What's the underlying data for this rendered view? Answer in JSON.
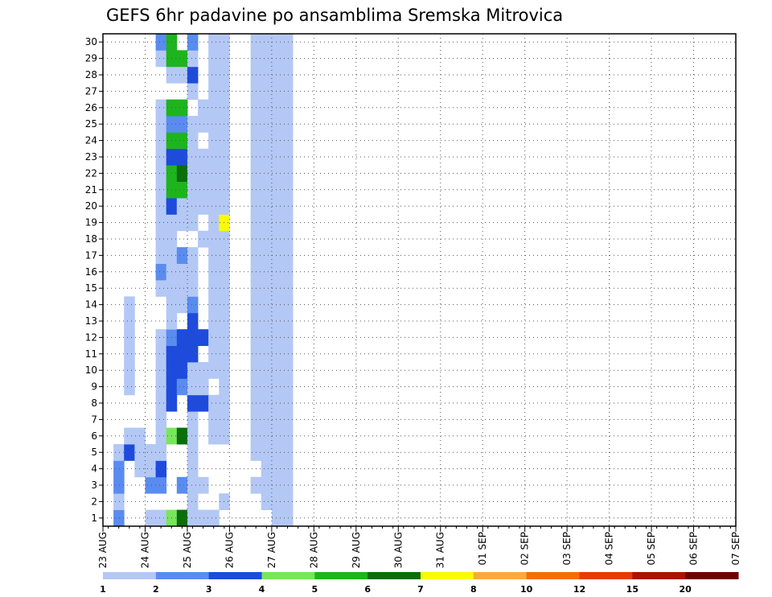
{
  "chart_data": {
    "type": "heatmap",
    "title": "GEFS 6hr padavine po ansamblima Sremska Mitrovica",
    "x_tick_labels": [
      "23 AUG",
      "24 AUG",
      "25 AUG",
      "26 AUG",
      "27 AUG",
      "28 AUG",
      "29 AUG",
      "30 AUG",
      "31 AUG",
      "01 SEP",
      "02 SEP",
      "03 SEP",
      "04 SEP",
      "05 SEP",
      "06 SEP",
      "07 SEP"
    ],
    "x_step": "6h",
    "steps_per_day": 4,
    "ylim": [
      0,
      30
    ],
    "y_ticks": [
      1,
      2,
      3,
      4,
      5,
      6,
      7,
      8,
      9,
      10,
      11,
      12,
      13,
      14,
      15,
      16,
      17,
      18,
      19,
      20,
      21,
      22,
      23,
      24,
      25,
      26,
      27,
      28,
      29,
      30
    ],
    "grid": true,
    "legend_placement": "bottom",
    "colorbar": {
      "tick_labels": [
        "1",
        "2",
        "3",
        "4",
        "5",
        "6",
        "7",
        "8",
        "10",
        "12",
        "15",
        "20"
      ],
      "colors": [
        "#b4c8f5",
        "#5a8cf0",
        "#1e4bdc",
        "#78e65a",
        "#1eb41e",
        "#0a6e0a",
        "#fafa00",
        "#faaa3c",
        "#f56e00",
        "#e63c00",
        "#aa1400",
        "#6e0000"
      ]
    },
    "cells": [
      [
        1,
        1,
        2
      ],
      [
        1,
        2,
        1
      ],
      [
        1,
        3,
        2
      ],
      [
        1,
        4,
        2
      ],
      [
        1,
        5,
        1
      ],
      [
        2,
        5,
        3
      ],
      [
        2,
        6,
        1
      ],
      [
        2,
        9,
        1
      ],
      [
        2,
        10,
        1
      ],
      [
        2,
        11,
        1
      ],
      [
        2,
        12,
        1
      ],
      [
        2,
        13,
        1
      ],
      [
        2,
        14,
        1
      ],
      [
        3,
        4,
        1
      ],
      [
        3,
        5,
        1
      ],
      [
        3,
        6,
        1
      ],
      [
        4,
        1,
        1
      ],
      [
        4,
        3,
        2
      ],
      [
        4,
        4,
        1
      ],
      [
        4,
        5,
        1
      ],
      [
        5,
        1,
        1
      ],
      [
        5,
        3,
        2
      ],
      [
        5,
        4,
        3
      ],
      [
        5,
        5,
        1
      ],
      [
        5,
        6,
        1
      ],
      [
        5,
        7,
        1
      ],
      [
        5,
        8,
        1
      ],
      [
        5,
        9,
        1
      ],
      [
        5,
        10,
        1
      ],
      [
        5,
        11,
        1
      ],
      [
        5,
        12,
        1
      ],
      [
        5,
        15,
        1
      ],
      [
        5,
        16,
        2
      ],
      [
        5,
        17,
        1
      ],
      [
        5,
        18,
        1
      ],
      [
        5,
        19,
        1
      ],
      [
        5,
        20,
        1
      ],
      [
        5,
        21,
        1
      ],
      [
        5,
        22,
        1
      ],
      [
        5,
        23,
        1
      ],
      [
        5,
        24,
        1
      ],
      [
        5,
        25,
        1
      ],
      [
        5,
        26,
        1
      ],
      [
        5,
        29,
        1
      ],
      [
        5,
        30,
        2
      ],
      [
        6,
        1,
        4
      ],
      [
        6,
        6,
        4
      ],
      [
        6,
        8,
        3
      ],
      [
        6,
        9,
        3
      ],
      [
        6,
        10,
        3
      ],
      [
        6,
        11,
        3
      ],
      [
        6,
        12,
        2
      ],
      [
        6,
        13,
        1
      ],
      [
        6,
        14,
        1
      ],
      [
        6,
        15,
        1
      ],
      [
        6,
        16,
        1
      ],
      [
        6,
        17,
        1
      ],
      [
        6,
        18,
        1
      ],
      [
        6,
        19,
        1
      ],
      [
        6,
        20,
        3
      ],
      [
        6,
        21,
        5
      ],
      [
        6,
        22,
        5
      ],
      [
        6,
        23,
        3
      ],
      [
        6,
        24,
        5
      ],
      [
        6,
        25,
        2
      ],
      [
        6,
        26,
        5
      ],
      [
        6,
        28,
        1
      ],
      [
        6,
        29,
        5
      ],
      [
        6,
        30,
        5
      ],
      [
        7,
        1,
        6
      ],
      [
        7,
        3,
        2
      ],
      [
        7,
        6,
        6
      ],
      [
        7,
        9,
        2
      ],
      [
        7,
        10,
        3
      ],
      [
        7,
        11,
        3
      ],
      [
        7,
        12,
        3
      ],
      [
        7,
        14,
        1
      ],
      [
        7,
        15,
        1
      ],
      [
        7,
        16,
        1
      ],
      [
        7,
        17,
        2
      ],
      [
        7,
        19,
        1
      ],
      [
        7,
        20,
        1
      ],
      [
        7,
        21,
        5
      ],
      [
        7,
        22,
        6
      ],
      [
        7,
        23,
        3
      ],
      [
        7,
        24,
        5
      ],
      [
        7,
        25,
        2
      ],
      [
        7,
        26,
        5
      ],
      [
        7,
        28,
        1
      ],
      [
        7,
        29,
        5
      ],
      [
        8,
        1,
        1
      ],
      [
        8,
        2,
        1
      ],
      [
        8,
        3,
        1
      ],
      [
        8,
        4,
        1
      ],
      [
        8,
        5,
        1
      ],
      [
        8,
        6,
        1
      ],
      [
        8,
        7,
        1
      ],
      [
        8,
        8,
        3
      ],
      [
        8,
        9,
        1
      ],
      [
        8,
        10,
        1
      ],
      [
        8,
        11,
        3
      ],
      [
        8,
        12,
        3
      ],
      [
        8,
        13,
        3
      ],
      [
        8,
        14,
        2
      ],
      [
        8,
        15,
        1
      ],
      [
        8,
        16,
        1
      ],
      [
        8,
        17,
        1
      ],
      [
        8,
        19,
        1
      ],
      [
        8,
        20,
        1
      ],
      [
        8,
        21,
        1
      ],
      [
        8,
        22,
        1
      ],
      [
        8,
        23,
        1
      ],
      [
        8,
        24,
        1
      ],
      [
        8,
        25,
        1
      ],
      [
        8,
        27,
        1
      ],
      [
        8,
        28,
        3
      ],
      [
        8,
        29,
        1
      ],
      [
        8,
        30,
        2
      ],
      [
        9,
        1,
        1
      ],
      [
        9,
        3,
        1
      ],
      [
        9,
        8,
        3
      ],
      [
        9,
        9,
        1
      ],
      [
        9,
        10,
        1
      ],
      [
        9,
        12,
        3
      ],
      [
        9,
        18,
        1
      ],
      [
        9,
        20,
        1
      ],
      [
        9,
        21,
        1
      ],
      [
        9,
        22,
        1
      ],
      [
        9,
        23,
        1
      ],
      [
        9,
        25,
        1
      ],
      [
        9,
        26,
        1
      ],
      [
        10,
        1,
        1
      ],
      [
        10,
        6,
        1
      ],
      [
        10,
        7,
        1
      ],
      [
        10,
        8,
        1
      ],
      [
        10,
        10,
        1
      ],
      [
        10,
        11,
        1
      ],
      [
        10,
        12,
        1
      ],
      [
        10,
        13,
        1
      ],
      [
        10,
        14,
        1
      ],
      [
        10,
        15,
        1
      ],
      [
        10,
        16,
        1
      ],
      [
        10,
        17,
        1
      ],
      [
        10,
        18,
        1
      ],
      [
        10,
        19,
        1
      ],
      [
        10,
        20,
        1
      ],
      [
        10,
        21,
        1
      ],
      [
        10,
        22,
        1
      ],
      [
        10,
        23,
        1
      ],
      [
        10,
        24,
        1
      ],
      [
        10,
        25,
        1
      ],
      [
        10,
        26,
        1
      ],
      [
        10,
        27,
        1
      ],
      [
        10,
        28,
        1
      ],
      [
        10,
        29,
        1
      ],
      [
        10,
        30,
        1
      ],
      [
        11,
        2,
        1
      ],
      [
        11,
        6,
        1
      ],
      [
        11,
        7,
        1
      ],
      [
        11,
        8,
        1
      ],
      [
        11,
        9,
        1
      ],
      [
        11,
        10,
        1
      ],
      [
        11,
        11,
        1
      ],
      [
        11,
        12,
        1
      ],
      [
        11,
        13,
        1
      ],
      [
        11,
        14,
        1
      ],
      [
        11,
        15,
        1
      ],
      [
        11,
        16,
        1
      ],
      [
        11,
        17,
        1
      ],
      [
        11,
        18,
        1
      ],
      [
        11,
        19,
        7
      ],
      [
        11,
        20,
        1
      ],
      [
        11,
        21,
        1
      ],
      [
        11,
        22,
        1
      ],
      [
        11,
        23,
        1
      ],
      [
        11,
        24,
        1
      ],
      [
        11,
        25,
        1
      ],
      [
        11,
        26,
        1
      ],
      [
        11,
        27,
        1
      ],
      [
        11,
        28,
        1
      ],
      [
        11,
        29,
        1
      ],
      [
        11,
        30,
        1
      ],
      [
        14,
        3,
        1
      ],
      [
        14,
        5,
        1
      ],
      [
        14,
        6,
        1
      ],
      [
        14,
        7,
        1
      ],
      [
        14,
        8,
        1
      ],
      [
        14,
        9,
        1
      ],
      [
        14,
        10,
        1
      ],
      [
        14,
        11,
        1
      ],
      [
        14,
        12,
        1
      ],
      [
        14,
        13,
        1
      ],
      [
        14,
        14,
        1
      ],
      [
        14,
        15,
        1
      ],
      [
        14,
        16,
        1
      ],
      [
        14,
        17,
        1
      ],
      [
        14,
        18,
        1
      ],
      [
        14,
        19,
        1
      ],
      [
        14,
        20,
        1
      ],
      [
        14,
        21,
        1
      ],
      [
        14,
        22,
        1
      ],
      [
        14,
        23,
        1
      ],
      [
        14,
        24,
        1
      ],
      [
        14,
        25,
        1
      ],
      [
        14,
        26,
        1
      ],
      [
        14,
        27,
        1
      ],
      [
        14,
        28,
        1
      ],
      [
        14,
        29,
        1
      ],
      [
        14,
        30,
        1
      ],
      [
        15,
        2,
        1
      ],
      [
        15,
        3,
        1
      ],
      [
        15,
        4,
        1
      ],
      [
        15,
        5,
        1
      ],
      [
        15,
        6,
        1
      ],
      [
        15,
        7,
        1
      ],
      [
        15,
        8,
        1
      ],
      [
        15,
        9,
        1
      ],
      [
        15,
        10,
        1
      ],
      [
        15,
        11,
        1
      ],
      [
        15,
        12,
        1
      ],
      [
        15,
        13,
        1
      ],
      [
        15,
        14,
        1
      ],
      [
        15,
        15,
        1
      ],
      [
        15,
        16,
        1
      ],
      [
        15,
        17,
        1
      ],
      [
        15,
        18,
        1
      ],
      [
        15,
        19,
        1
      ],
      [
        15,
        20,
        1
      ],
      [
        15,
        21,
        1
      ],
      [
        15,
        22,
        1
      ],
      [
        15,
        23,
        1
      ],
      [
        15,
        24,
        1
      ],
      [
        15,
        25,
        1
      ],
      [
        15,
        26,
        1
      ],
      [
        15,
        27,
        1
      ],
      [
        15,
        28,
        1
      ],
      [
        15,
        29,
        1
      ],
      [
        15,
        30,
        1
      ],
      [
        16,
        1,
        1
      ],
      [
        16,
        2,
        1
      ],
      [
        16,
        3,
        1
      ],
      [
        16,
        4,
        1
      ],
      [
        16,
        5,
        1
      ],
      [
        16,
        6,
        1
      ],
      [
        16,
        7,
        1
      ],
      [
        16,
        8,
        1
      ],
      [
        16,
        9,
        1
      ],
      [
        16,
        10,
        1
      ],
      [
        16,
        11,
        1
      ],
      [
        16,
        12,
        1
      ],
      [
        16,
        13,
        1
      ],
      [
        16,
        14,
        1
      ],
      [
        16,
        15,
        1
      ],
      [
        16,
        16,
        1
      ],
      [
        16,
        17,
        1
      ],
      [
        16,
        18,
        1
      ],
      [
        16,
        19,
        1
      ],
      [
        16,
        20,
        1
      ],
      [
        16,
        21,
        1
      ],
      [
        16,
        22,
        1
      ],
      [
        16,
        23,
        1
      ],
      [
        16,
        24,
        1
      ],
      [
        16,
        25,
        1
      ],
      [
        16,
        26,
        1
      ],
      [
        16,
        27,
        1
      ],
      [
        16,
        28,
        1
      ],
      [
        16,
        29,
        1
      ],
      [
        16,
        30,
        1
      ],
      [
        17,
        1,
        1
      ],
      [
        17,
        2,
        1
      ],
      [
        17,
        3,
        1
      ],
      [
        17,
        4,
        1
      ],
      [
        17,
        5,
        1
      ],
      [
        17,
        6,
        1
      ],
      [
        17,
        7,
        1
      ],
      [
        17,
        8,
        1
      ],
      [
        17,
        9,
        1
      ],
      [
        17,
        10,
        1
      ],
      [
        17,
        11,
        1
      ],
      [
        17,
        12,
        1
      ],
      [
        17,
        13,
        1
      ],
      [
        17,
        14,
        1
      ],
      [
        17,
        15,
        1
      ],
      [
        17,
        16,
        1
      ],
      [
        17,
        17,
        1
      ],
      [
        17,
        18,
        1
      ],
      [
        17,
        19,
        1
      ],
      [
        17,
        20,
        1
      ],
      [
        17,
        21,
        1
      ],
      [
        17,
        22,
        1
      ],
      [
        17,
        23,
        1
      ],
      [
        17,
        24,
        1
      ],
      [
        17,
        25,
        1
      ],
      [
        17,
        26,
        1
      ],
      [
        17,
        27,
        1
      ],
      [
        17,
        28,
        1
      ],
      [
        17,
        29,
        1
      ],
      [
        17,
        30,
        1
      ]
    ]
  }
}
